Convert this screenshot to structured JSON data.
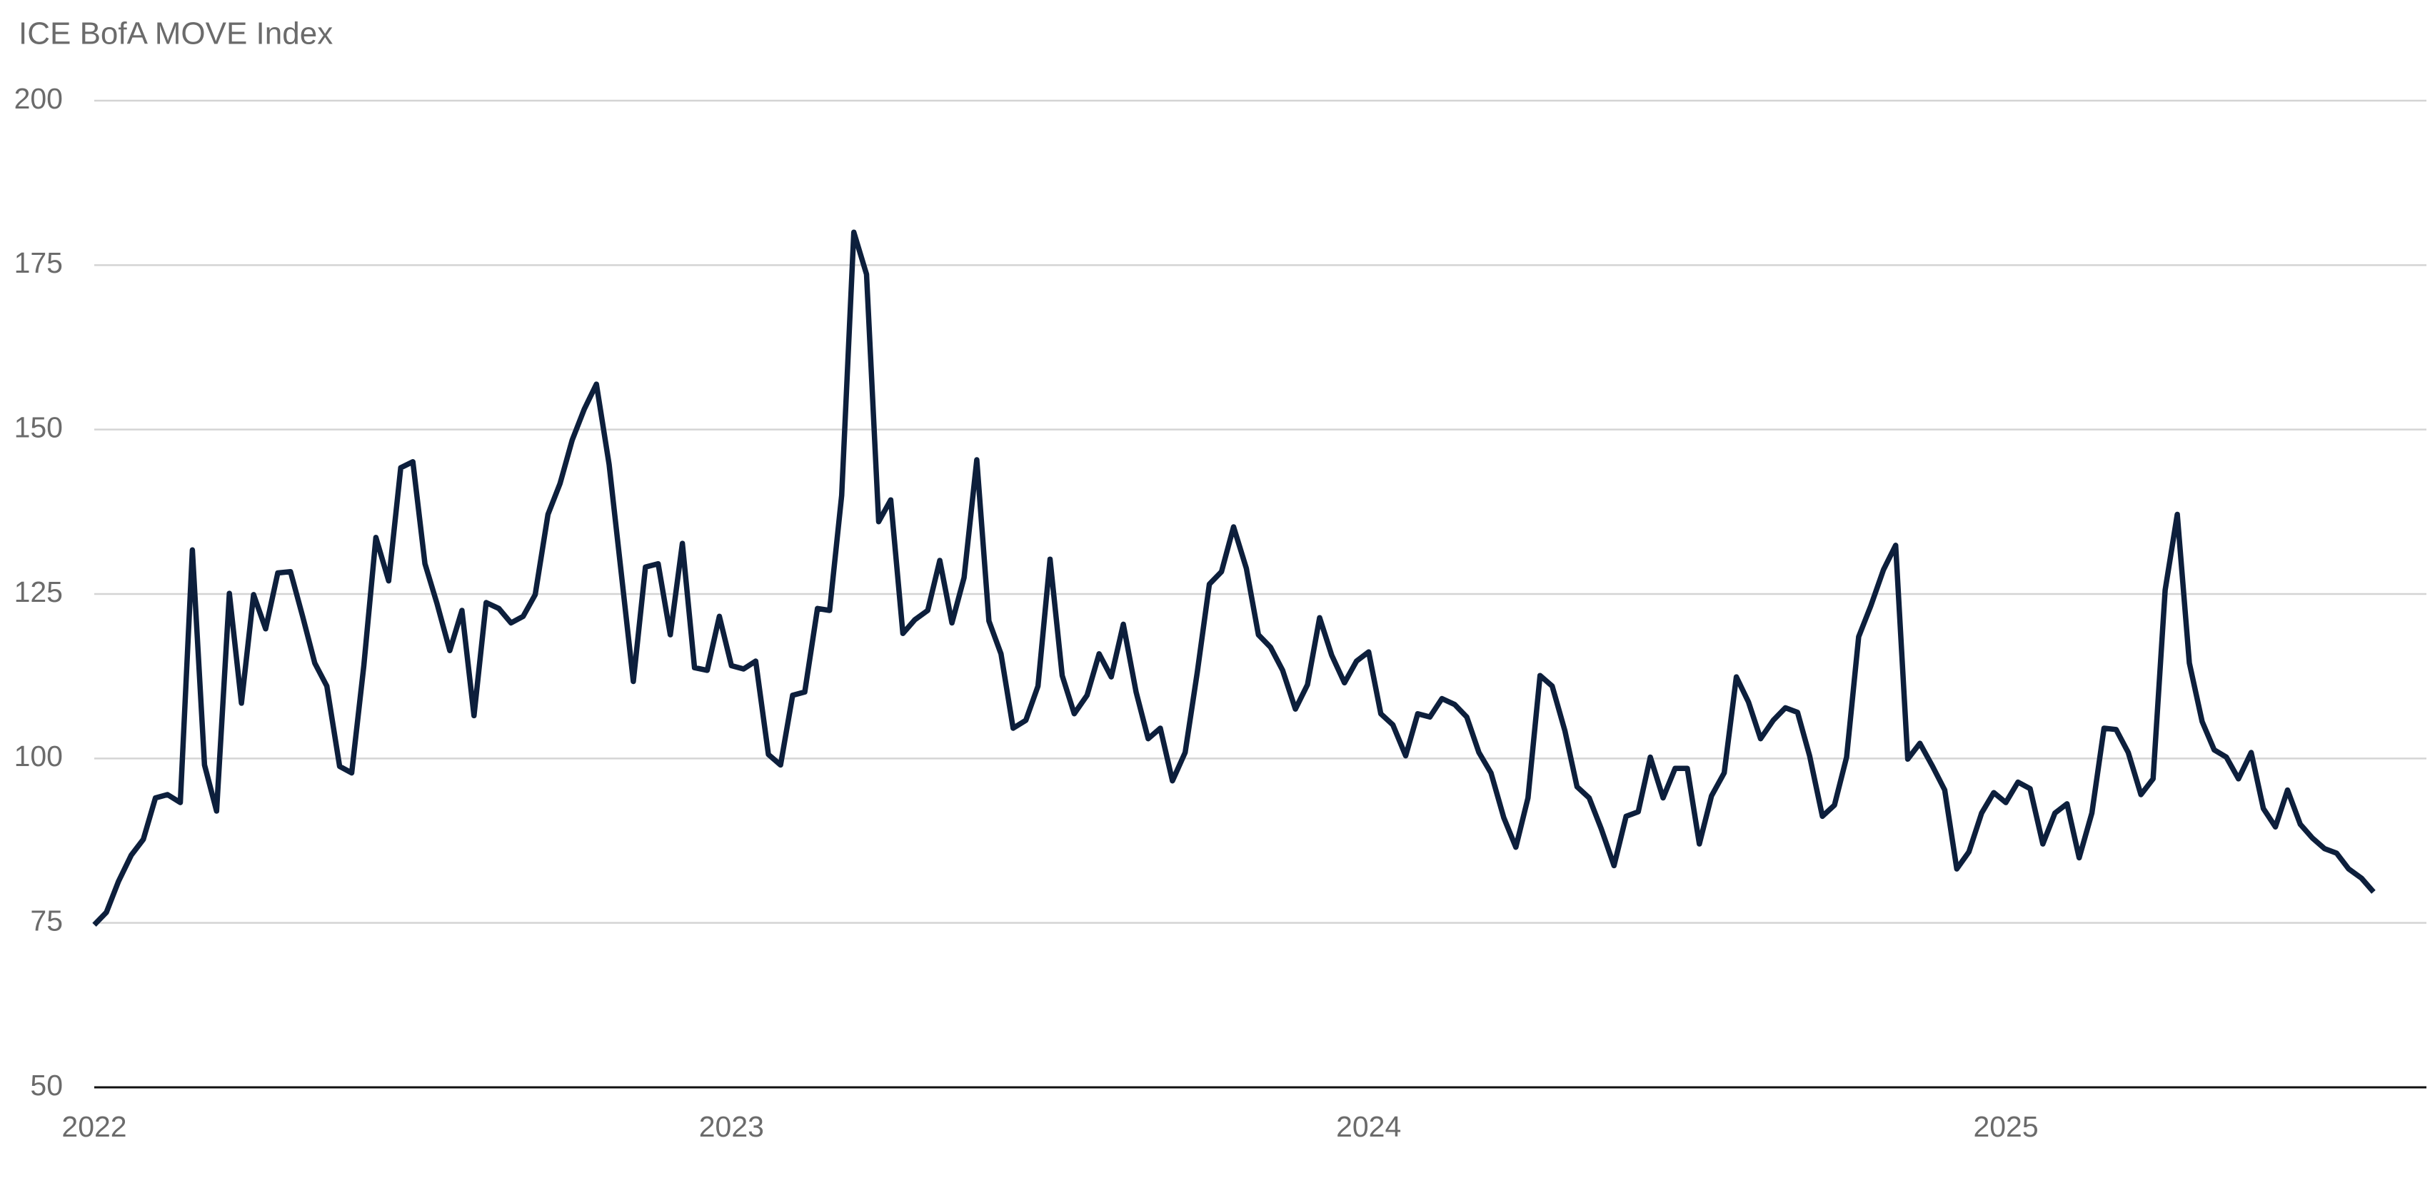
{
  "chart_data": {
    "type": "line",
    "title": "ICE BofA MOVE Index",
    "x": [
      2022,
      2022.019,
      2022.038,
      2022.058,
      2022.077,
      2022.096,
      2022.115,
      2022.135,
      2022.154,
      2022.173,
      2022.192,
      2022.212,
      2022.231,
      2022.25,
      2022.269,
      2022.288,
      2022.308,
      2022.327,
      2022.346,
      2022.365,
      2022.385,
      2022.404,
      2022.423,
      2022.442,
      2022.462,
      2022.481,
      2022.5,
      2022.519,
      2022.538,
      2022.558,
      2022.577,
      2022.596,
      2022.615,
      2022.635,
      2022.654,
      2022.673,
      2022.692,
      2022.712,
      2022.731,
      2022.75,
      2022.769,
      2022.788,
      2022.808,
      2022.827,
      2022.846,
      2022.865,
      2022.885,
      2022.904,
      2022.923,
      2022.942,
      2022.962,
      2022.981,
      2023,
      2023.019,
      2023.038,
      2023.058,
      2023.077,
      2023.096,
      2023.115,
      2023.135,
      2023.154,
      2023.173,
      2023.192,
      2023.212,
      2023.231,
      2023.25,
      2023.269,
      2023.288,
      2023.308,
      2023.327,
      2023.346,
      2023.365,
      2023.385,
      2023.404,
      2023.423,
      2023.442,
      2023.462,
      2023.481,
      2023.5,
      2023.519,
      2023.538,
      2023.558,
      2023.577,
      2023.596,
      2023.615,
      2023.635,
      2023.654,
      2023.673,
      2023.692,
      2023.712,
      2023.731,
      2023.75,
      2023.769,
      2023.788,
      2023.808,
      2023.827,
      2023.846,
      2023.865,
      2023.885,
      2023.904,
      2023.923,
      2023.942,
      2023.962,
      2023.981,
      2024,
      2024.019,
      2024.038,
      2024.058,
      2024.077,
      2024.096,
      2024.115,
      2024.135,
      2024.154,
      2024.173,
      2024.192,
      2024.212,
      2024.231,
      2024.25,
      2024.269,
      2024.288,
      2024.308,
      2024.327,
      2024.346,
      2024.365,
      2024.385,
      2024.404,
      2024.423,
      2024.442,
      2024.462,
      2024.481,
      2024.5,
      2024.519,
      2024.538,
      2024.558,
      2024.577,
      2024.596,
      2024.615,
      2024.635,
      2024.654,
      2024.673,
      2024.692,
      2024.712,
      2024.731,
      2024.75,
      2024.769,
      2024.788,
      2024.808,
      2024.827,
      2024.846,
      2024.865,
      2024.885,
      2024.904,
      2024.923,
      2024.942,
      2024.962,
      2024.981,
      2025,
      2025.019,
      2025.038,
      2025.058,
      2025.077,
      2025.096,
      2025.115,
      2025.135,
      2025.154,
      2025.173,
      2025.192,
      2025.212,
      2025.231,
      2025.25,
      2025.269,
      2025.288,
      2025.308,
      2025.327,
      2025.346,
      2025.365,
      2025.385,
      2025.404,
      2025.423,
      2025.442,
      2025.462,
      2025.481,
      2025.5,
      2025.519,
      2025.538,
      2025.558,
      2025.577
    ],
    "series": [
      {
        "name": "ICE BofA MOVE Index",
        "color": "#0d1f3c",
        "values": [
          74.7,
          76.6,
          81.3,
          85.3,
          87.7,
          94.0,
          94.5,
          93.3,
          131.7,
          99.0,
          92.0,
          125.1,
          108.4,
          124.9,
          119.7,
          128.2,
          128.4,
          121.6,
          114.5,
          111.0,
          98.8,
          97.8,
          114.1,
          133.6,
          127.0,
          144.2,
          145.1,
          129.6,
          123.5,
          116.4,
          122.5,
          106.5,
          123.7,
          122.8,
          120.6,
          121.6,
          124.9,
          137.1,
          141.8,
          148.4,
          153.1,
          156.9,
          144.7,
          128.2,
          111.7,
          129.1,
          129.6,
          118.8,
          132.7,
          113.8,
          113.4,
          121.6,
          114.1,
          113.6,
          114.8,
          100.6,
          99.0,
          109.6,
          110.1,
          122.8,
          122.5,
          140.0,
          180.0,
          173.6,
          136.0,
          139.3,
          119.0,
          121.1,
          122.5,
          130.1,
          120.6,
          127.5,
          145.4,
          120.9,
          115.9,
          104.6,
          105.8,
          111.0,
          130.3,
          112.6,
          106.8,
          109.6,
          115.9,
          112.4,
          120.4,
          110.1,
          103.0,
          104.6,
          96.6,
          100.9,
          113.1,
          126.5,
          128.4,
          135.2,
          128.9,
          118.8,
          116.9,
          113.4,
          107.5,
          111.2,
          121.4,
          115.7,
          111.5,
          114.8,
          116.2,
          106.8,
          105.1,
          100.4,
          106.8,
          106.3,
          109.1,
          108.2,
          106.3,
          100.9,
          97.8,
          91.0,
          86.5,
          94.0,
          112.6,
          111.0,
          104.2,
          95.7,
          94.0,
          89.3,
          83.7,
          91.2,
          91.9,
          100.2,
          94.0,
          98.5,
          98.5,
          87.0,
          94.3,
          97.8,
          112.4,
          108.6,
          103.0,
          105.8,
          107.7,
          107.0,
          100.4,
          91.2,
          92.9,
          100.2,
          118.5,
          123.2,
          128.7,
          132.4,
          99.9,
          102.3,
          98.8,
          95.2,
          83.2,
          85.8,
          91.7,
          94.8,
          93.3,
          96.4,
          95.4,
          87.0,
          91.7,
          93.1,
          84.9,
          91.7,
          104.6,
          104.4,
          100.9,
          94.5,
          96.9,
          125.6,
          137.1,
          114.5,
          105.6,
          101.3,
          100.2,
          96.9,
          100.9,
          92.4,
          89.6,
          95.2,
          90.0,
          87.9,
          86.3,
          85.6,
          83.2,
          81.8,
          79.7
        ]
      }
    ],
    "xlim": [
      2022,
      2025.66
    ],
    "xticks": [
      2022,
      2023,
      2024,
      2025
    ],
    "ylim": [
      50,
      200
    ],
    "yticks": [
      50,
      75,
      100,
      125,
      150,
      175,
      200
    ],
    "grid": true
  }
}
